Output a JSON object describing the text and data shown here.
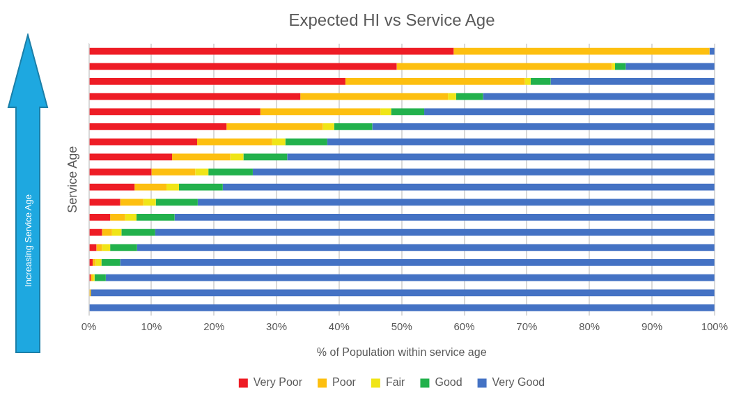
{
  "chart_data": {
    "type": "bar",
    "orientation": "horizontal",
    "stacked": true,
    "title": "Expected HI vs Service Age",
    "xlabel": "% of Population within service age",
    "ylabel": "Service Age",
    "annotations": [
      "Increasing Service Age"
    ],
    "categories": [
      null,
      null,
      null,
      null,
      null,
      null,
      null,
      null,
      null,
      null,
      null,
      null,
      null,
      null,
      null,
      null,
      null,
      null
    ],
    "series": [
      {
        "name": "Very Poor",
        "color": "#ee1c25",
        "values": [
          58.3,
          49.2,
          41.0,
          33.8,
          27.4,
          22.0,
          17.3,
          13.3,
          10.0,
          7.3,
          5.0,
          3.4,
          2.1,
          1.2,
          0.6,
          0.3,
          0,
          0
        ]
      },
      {
        "name": "Poor",
        "color": "#fdbf10",
        "values": [
          40.9,
          34.4,
          28.7,
          23.6,
          19.2,
          15.4,
          12.0,
          9.3,
          7.0,
          5.1,
          3.7,
          2.4,
          1.6,
          0.9,
          0.5,
          0.3,
          0.3,
          0
        ]
      },
      {
        "name": "Fair",
        "color": "#f0e517",
        "values": [
          0,
          0.5,
          0.9,
          1.3,
          1.7,
          1.8,
          2.1,
          2.1,
          2.1,
          2.0,
          2.0,
          1.8,
          1.5,
          1.3,
          0.9,
          0.3,
          0,
          0
        ]
      },
      {
        "name": "Good",
        "color": "#22b14c",
        "values": [
          0,
          1.7,
          3.2,
          4.3,
          5.3,
          6.1,
          6.7,
          7.0,
          7.1,
          7.0,
          6.7,
          6.1,
          5.4,
          4.3,
          3.0,
          1.8,
          0,
          0
        ]
      },
      {
        "name": "Very Good",
        "color": "#4472c4",
        "values": [
          0.8,
          14.2,
          26.2,
          37.0,
          46.4,
          54.7,
          61.9,
          68.3,
          73.8,
          78.6,
          82.6,
          86.3,
          89.4,
          92.3,
          95.0,
          97.3,
          99.7,
          100
        ]
      }
    ],
    "xlim": [
      0,
      100
    ],
    "xticks": [
      {
        "value": 0,
        "label": "0%"
      },
      {
        "value": 10,
        "label": "10%"
      },
      {
        "value": 20,
        "label": "20%"
      },
      {
        "value": 30,
        "label": "30%"
      },
      {
        "value": 40,
        "label": "40%"
      },
      {
        "value": 50,
        "label": "50%"
      },
      {
        "value": 60,
        "label": "60%"
      },
      {
        "value": 70,
        "label": "70%"
      },
      {
        "value": 80,
        "label": "80%"
      },
      {
        "value": 90,
        "label": "90%"
      },
      {
        "value": 100,
        "label": "100%"
      }
    ],
    "grid": "x",
    "legend": "bottom",
    "tick_labels": "x"
  }
}
